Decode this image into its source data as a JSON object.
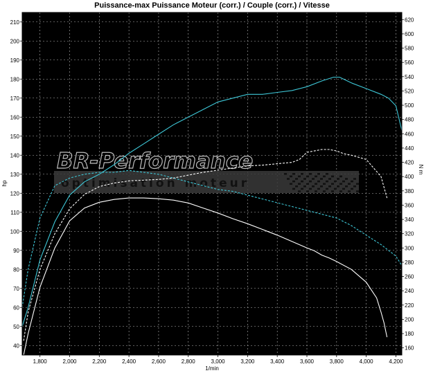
{
  "chart_data": {
    "type": "line",
    "title": "Puissance-max Puissance Moteur (corr.) / Couple (corr.) / Vitesse",
    "xlabel": "1/min",
    "ylabel": "hp",
    "y2label": "N m",
    "xlim": [
      1680,
      4240
    ],
    "ylim": [
      35,
      215
    ],
    "y2lim": [
      150,
      630
    ],
    "x_ticks": [
      1800,
      2000,
      2200,
      2400,
      2600,
      2800,
      3000,
      3200,
      3400,
      3600,
      3800,
      4000,
      4200
    ],
    "x_tick_labels": [
      "1,800",
      "2,000",
      "2,200",
      "2,400",
      "2,600",
      "2,800",
      "3,000",
      "3,200",
      "3,400",
      "3,600",
      "3,800",
      "4,000",
      "4,200"
    ],
    "y_ticks": [
      40,
      50,
      60,
      70,
      80,
      90,
      100,
      110,
      120,
      130,
      140,
      150,
      160,
      170,
      180,
      190,
      200,
      210
    ],
    "y2_ticks": [
      160,
      180,
      200,
      220,
      240,
      260,
      280,
      300,
      320,
      340,
      360,
      380,
      400,
      420,
      440,
      460,
      480,
      500,
      520,
      540,
      560,
      580,
      600,
      620
    ],
    "grid": true,
    "legend": "none",
    "background": "#000000",
    "series": [
      {
        "axis": "left",
        "color": "#3ec8d8",
        "dash": "solid",
        "x": [
          1680,
          1720,
          1800,
          1900,
          2000,
          2100,
          2200,
          2300,
          2400,
          2500,
          2600,
          2700,
          2800,
          2900,
          3000,
          3100,
          3200,
          3300,
          3400,
          3500,
          3600,
          3700,
          3780,
          3820,
          3900,
          4000,
          4100,
          4150,
          4200,
          4240
        ],
        "y": [
          50,
          60,
          85,
          105,
          119,
          126,
          130,
          135,
          141,
          146,
          151,
          156,
          160,
          164,
          168,
          170,
          172,
          172,
          173,
          174,
          176,
          179,
          181,
          181,
          178,
          175,
          172,
          170,
          166,
          153
        ]
      },
      {
        "axis": "left",
        "color": "#3ec8d8",
        "dash": "dashed",
        "x": [
          1680,
          1720,
          1800,
          1900,
          2000,
          2100,
          2200,
          2300,
          2400,
          2500,
          2600,
          2700,
          2800,
          2900,
          3000,
          3100,
          3200,
          3300,
          3400,
          3500,
          3600,
          3700,
          3800,
          3900,
          4000,
          4100,
          4200,
          4240
        ],
        "y": [
          60,
          80,
          107,
          124,
          128,
          130,
          131,
          131,
          132,
          131,
          130,
          128,
          126,
          124,
          122,
          121,
          119,
          117,
          115,
          113,
          111,
          109,
          107,
          103,
          98,
          93,
          87,
          82
        ]
      },
      {
        "axis": "right",
        "color": "#ffffff",
        "dash": "solid",
        "x": [
          1690,
          1720,
          1800,
          1900,
          2000,
          2100,
          2200,
          2300,
          2400,
          2500,
          2600,
          2700,
          2800,
          2900,
          3000,
          3100,
          3200,
          3300,
          3400,
          3500,
          3600,
          3650,
          3700,
          3750,
          3800,
          3900,
          4000,
          4070,
          4100,
          4120,
          4140
        ],
        "y": [
          150,
          180,
          245,
          300,
          338,
          356,
          364,
          368,
          370,
          370,
          369,
          367,
          363,
          356,
          349,
          341,
          334,
          326,
          318,
          309,
          300,
          296,
          290,
          286,
          281,
          270,
          252,
          230,
          210,
          195,
          175
        ]
      },
      {
        "axis": "right",
        "color": "#ffffff",
        "dash": "dashed",
        "x": [
          1690,
          1720,
          1800,
          1900,
          2000,
          2100,
          2200,
          2300,
          2400,
          2500,
          2600,
          2700,
          2800,
          2900,
          3000,
          3100,
          3200,
          3300,
          3400,
          3500,
          3550,
          3600,
          3650,
          3700,
          3750,
          3800,
          3850,
          3900,
          4000,
          4100,
          4140
        ],
        "y": [
          170,
          210,
          270,
          320,
          355,
          375,
          386,
          391,
          394,
          395,
          396,
          398,
          402,
          406,
          409,
          412,
          415,
          416,
          418,
          420,
          424,
          434,
          436,
          438,
          438,
          436,
          432,
          430,
          424,
          400,
          370
        ]
      }
    ]
  },
  "watermark": {
    "brand": "BR-Performance",
    "tagline": "optimisation moteur"
  }
}
